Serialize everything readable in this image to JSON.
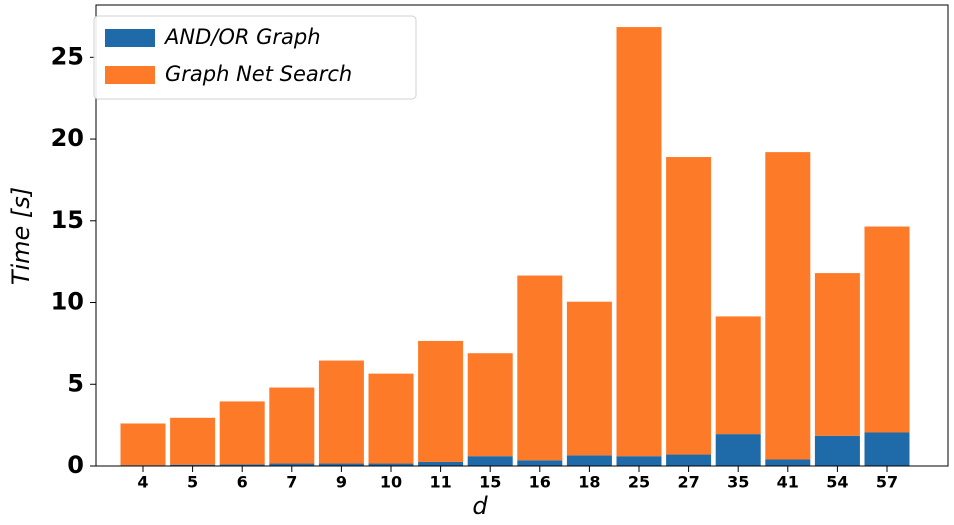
{
  "chart_data": {
    "type": "stacked_bar",
    "x_label": "d",
    "y_label": "Time [s]",
    "categories": [
      "4",
      "5",
      "6",
      "7",
      "9",
      "10",
      "11",
      "15",
      "16",
      "18",
      "25",
      "27",
      "35",
      "41",
      "54",
      "57"
    ],
    "series": [
      {
        "name": "AND/OR Graph",
        "color": "#1f6aa8",
        "values": [
          0.05,
          0.08,
          0.1,
          0.15,
          0.15,
          0.15,
          0.25,
          0.6,
          0.35,
          0.65,
          0.6,
          0.7,
          1.95,
          0.4,
          1.85,
          2.05
        ]
      },
      {
        "name": "Graph Net Search",
        "color": "#fd7a28",
        "values": [
          2.55,
          2.87,
          3.85,
          4.65,
          6.3,
          5.5,
          7.4,
          6.3,
          11.3,
          9.4,
          26.25,
          18.2,
          7.2,
          18.8,
          9.95,
          12.6
        ]
      }
    ],
    "ylim": [
      0,
      28.2
    ],
    "yticks": [
      0,
      5,
      10,
      15,
      20,
      25
    ],
    "legend": "upper-left"
  }
}
